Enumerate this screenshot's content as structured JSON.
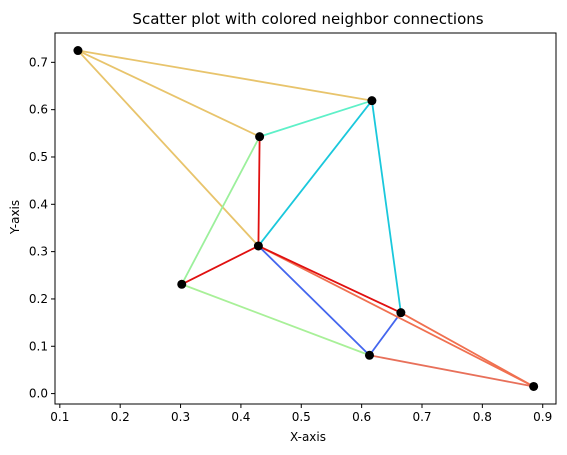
{
  "chart_data": {
    "type": "scatter",
    "title": "Scatter plot with colored neighbor connections",
    "xlabel": "X-axis",
    "ylabel": "Y-axis",
    "xlim": [
      0.092,
      0.922
    ],
    "ylim": [
      -0.022,
      0.762
    ],
    "xticks": [
      0.1,
      0.2,
      0.3,
      0.4,
      0.5,
      0.6,
      0.7,
      0.8,
      0.9
    ],
    "xtick_labels": [
      "0.1",
      "0.2",
      "0.3",
      "0.4",
      "0.5",
      "0.6",
      "0.7",
      "0.8",
      "0.9"
    ],
    "yticks": [
      0.0,
      0.1,
      0.2,
      0.3,
      0.4,
      0.5,
      0.6,
      0.7
    ],
    "ytick_labels": [
      "0.0",
      "0.1",
      "0.2",
      "0.3",
      "0.4",
      "0.5",
      "0.6",
      "0.7"
    ],
    "grid": false,
    "points": [
      {
        "x": 0.13,
        "y": 0.725
      },
      {
        "x": 0.617,
        "y": 0.619
      },
      {
        "x": 0.431,
        "y": 0.543
      },
      {
        "x": 0.429,
        "y": 0.312
      },
      {
        "x": 0.302,
        "y": 0.231
      },
      {
        "x": 0.665,
        "y": 0.171
      },
      {
        "x": 0.613,
        "y": 0.081
      },
      {
        "x": 0.885,
        "y": 0.015
      }
    ],
    "point_color": "#000000",
    "edges": [
      {
        "from": 0,
        "to": 1,
        "color": "#e8c46c"
      },
      {
        "from": 0,
        "to": 2,
        "color": "#e8c46c"
      },
      {
        "from": 0,
        "to": 3,
        "color": "#e8c46c"
      },
      {
        "from": 2,
        "to": 1,
        "color": "#5ef0c8"
      },
      {
        "from": 3,
        "to": 1,
        "color": "#1ac8dc"
      },
      {
        "from": 1,
        "to": 5,
        "color": "#1ac8dc"
      },
      {
        "from": 2,
        "to": 4,
        "color": "#9cf09c"
      },
      {
        "from": 4,
        "to": 6,
        "color": "#a8f098"
      },
      {
        "from": 3,
        "to": 6,
        "color": "#4466ee"
      },
      {
        "from": 5,
        "to": 6,
        "color": "#4466ee"
      },
      {
        "from": 3,
        "to": 7,
        "color": "#f07050"
      },
      {
        "from": 5,
        "to": 7,
        "color": "#f07050"
      },
      {
        "from": 6,
        "to": 7,
        "color": "#e8705a"
      },
      {
        "from": 2,
        "to": 3,
        "color": "#e01010"
      },
      {
        "from": 3,
        "to": 4,
        "color": "#e01010"
      },
      {
        "from": 3,
        "to": 5,
        "color": "#e01010"
      }
    ]
  }
}
